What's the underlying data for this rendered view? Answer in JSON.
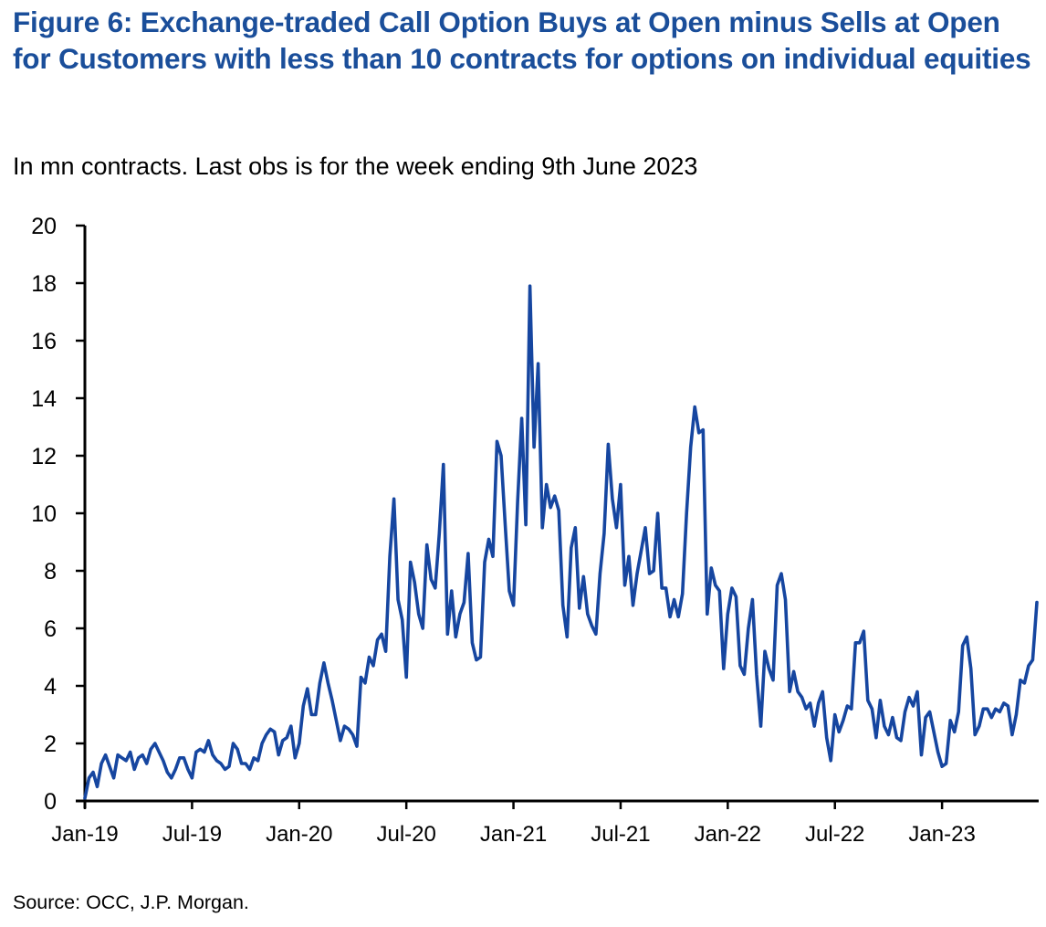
{
  "figure": {
    "title": "Figure 6: Exchange-traded Call Option Buys at Open minus Sells at Open for Customers with less than 10 contracts for options on individual equities",
    "subtitle": "In mn contracts. Last obs is for the week ending 9th June 2023",
    "source": "Source: OCC, J.P. Morgan."
  },
  "colors": {
    "title": "#1a4e9a",
    "line": "#1646a0",
    "axis": "#000000"
  },
  "chart_data": {
    "type": "line",
    "title": "Figure 6: Exchange-traded Call Option Buys at Open minus Sells at Open for Customers with less than 10 contracts for options on individual equities",
    "subtitle": "In mn contracts. Last obs is for the week ending 9th June 2023",
    "xlabel": "",
    "ylabel": "",
    "frequency": "weekly",
    "x_start": "2019-01-04",
    "x_end": "2023-06-09",
    "ylim": [
      0,
      20
    ],
    "yticks": [
      0,
      2,
      4,
      6,
      8,
      10,
      12,
      14,
      16,
      18,
      20
    ],
    "xtick_labels": [
      "Jan-19",
      "Jul-19",
      "Jan-20",
      "Jul-20",
      "Jan-21",
      "Jul-21",
      "Jan-22",
      "Jul-22",
      "Jan-23"
    ],
    "xtick_weeks": [
      0,
      26,
      52,
      78,
      104,
      130,
      156,
      182,
      208
    ],
    "grid": false,
    "legend": "none",
    "series": [
      {
        "name": "Call option buys at open minus sells at open (<10 contracts, mn)",
        "values": [
          0.1,
          0.8,
          1.0,
          0.5,
          1.3,
          1.6,
          1.2,
          0.8,
          1.6,
          1.5,
          1.4,
          1.7,
          1.1,
          1.5,
          1.6,
          1.3,
          1.8,
          2.0,
          1.7,
          1.4,
          1.0,
          0.8,
          1.1,
          1.5,
          1.5,
          1.1,
          0.8,
          1.7,
          1.8,
          1.7,
          2.1,
          1.6,
          1.4,
          1.3,
          1.1,
          1.2,
          2.0,
          1.8,
          1.3,
          1.3,
          1.1,
          1.5,
          1.4,
          2.0,
          2.3,
          2.5,
          2.4,
          1.6,
          2.1,
          2.2,
          2.6,
          1.5,
          2.0,
          3.3,
          3.9,
          3.0,
          3.0,
          4.1,
          4.8,
          4.1,
          3.5,
          2.8,
          2.1,
          2.6,
          2.5,
          2.3,
          1.9,
          4.3,
          4.1,
          5.0,
          4.7,
          5.6,
          5.8,
          5.2,
          8.5,
          10.5,
          7.0,
          6.3,
          4.3,
          8.3,
          7.6,
          6.5,
          6.0,
          8.9,
          7.7,
          7.4,
          9.3,
          11.7,
          5.8,
          7.3,
          5.7,
          6.5,
          6.9,
          8.6,
          5.5,
          4.9,
          5.0,
          8.3,
          9.1,
          8.5,
          12.5,
          12.0,
          9.6,
          7.3,
          6.8,
          10.4,
          13.3,
          9.6,
          17.9,
          12.3,
          15.2,
          9.5,
          11.0,
          10.2,
          10.6,
          10.1,
          6.8,
          5.7,
          8.8,
          9.5,
          6.7,
          7.8,
          6.5,
          6.1,
          5.8,
          7.9,
          9.3,
          12.4,
          10.5,
          9.5,
          11.0,
          7.5,
          8.5,
          6.8,
          7.9,
          8.7,
          9.5,
          7.9,
          8.0,
          10.0,
          7.4,
          7.4,
          6.4,
          7.0,
          6.4,
          7.2,
          10.0,
          12.3,
          13.7,
          12.8,
          12.9,
          6.5,
          8.1,
          7.5,
          7.3,
          4.6,
          6.5,
          7.4,
          7.1,
          4.7,
          4.4,
          6.0,
          7.0,
          4.4,
          2.6,
          5.2,
          4.6,
          4.2,
          7.5,
          7.9,
          7.0,
          3.8,
          4.5,
          3.8,
          3.6,
          3.2,
          3.4,
          2.6,
          3.4,
          3.8,
          2.2,
          1.4,
          3.0,
          2.4,
          2.8,
          3.3,
          3.2,
          5.5,
          5.5,
          5.9,
          3.5,
          3.2,
          2.2,
          3.5,
          2.6,
          2.3,
          2.9,
          2.2,
          2.1,
          3.1,
          3.6,
          3.3,
          3.8,
          1.6,
          2.9,
          3.1,
          2.4,
          1.7,
          1.2,
          1.3,
          2.8,
          2.4,
          3.1,
          5.4,
          5.7,
          4.6,
          2.3,
          2.6,
          3.2,
          3.2,
          2.9,
          3.2,
          3.1,
          3.4,
          3.3,
          2.3,
          3.0,
          4.2,
          4.1,
          4.7,
          4.9,
          6.9
        ]
      }
    ]
  }
}
